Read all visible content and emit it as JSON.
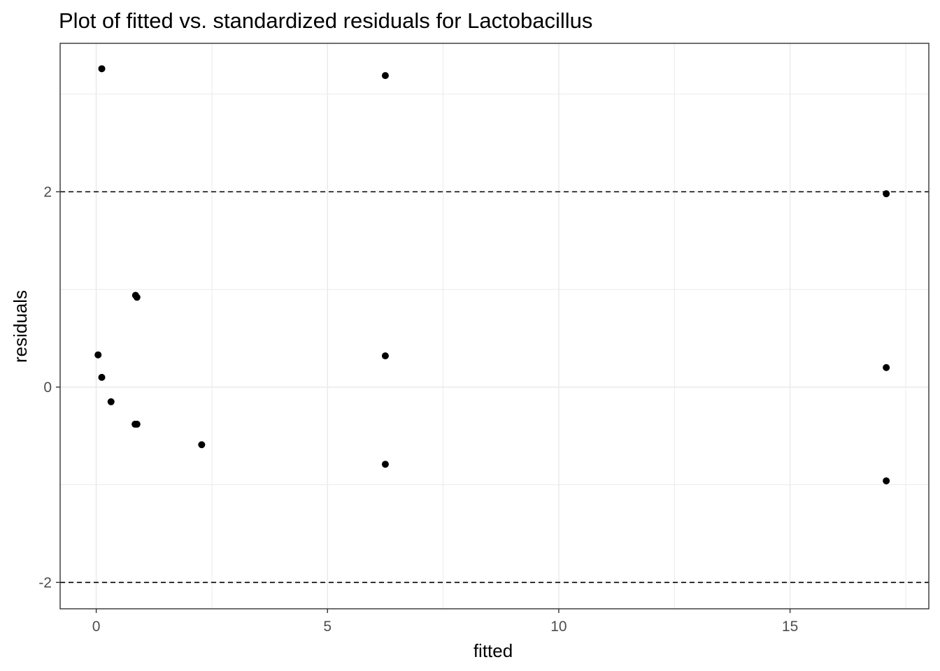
{
  "chart_data": {
    "type": "scatter",
    "title": "Plot of fitted vs. standardized residuals for Lactobacillus",
    "xlabel": "fitted",
    "ylabel": "residuals",
    "xlim": [
      -0.78,
      18.0
    ],
    "ylim": [
      -2.27,
      3.52
    ],
    "x_ticks": [
      0,
      5,
      10,
      15
    ],
    "x_tick_labels": [
      "0",
      "5",
      "10",
      "15"
    ],
    "y_ticks": [
      -2,
      0,
      2
    ],
    "y_tick_labels": [
      "-2",
      "0",
      "2"
    ],
    "reference_lines": [
      2,
      -2
    ],
    "grid": true,
    "legend": "none",
    "colors": {
      "points": "#000000",
      "grid": "#ebebeb",
      "reference_line": "#000000",
      "panel_border": "#333333"
    },
    "points": [
      {
        "x": 0.12,
        "y": 3.26
      },
      {
        "x": 6.25,
        "y": 3.19
      },
      {
        "x": 17.08,
        "y": 1.98
      },
      {
        "x": 0.85,
        "y": 0.94
      },
      {
        "x": 0.88,
        "y": 0.92
      },
      {
        "x": 0.04,
        "y": 0.33
      },
      {
        "x": 6.25,
        "y": 0.32
      },
      {
        "x": 17.08,
        "y": 0.2
      },
      {
        "x": 0.12,
        "y": 0.1
      },
      {
        "x": 0.32,
        "y": -0.15
      },
      {
        "x": 0.84,
        "y": -0.38
      },
      {
        "x": 0.88,
        "y": -0.38
      },
      {
        "x": 2.28,
        "y": -0.59
      },
      {
        "x": 6.25,
        "y": -0.79
      },
      {
        "x": 17.08,
        "y": -0.96
      }
    ]
  }
}
